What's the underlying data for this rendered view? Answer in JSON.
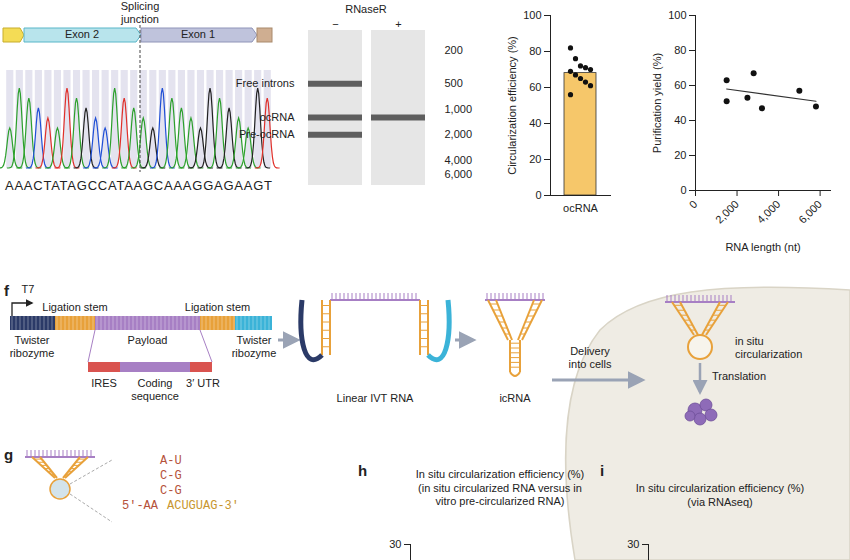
{
  "chart_data": [
    {
      "type": "gel",
      "title": "RNaseR",
      "lanes": [
        "−",
        "+"
      ],
      "log": "y",
      "ylim": [
        8000,
        117
      ],
      "yticks": [
        {
          "value": 6000,
          "label": "6,000"
        },
        {
          "value": 4000,
          "label": "4,000"
        },
        {
          "value": 2000,
          "label": "2,000"
        },
        {
          "value": 1000,
          "label": "1,000"
        },
        500,
        200
      ],
      "bands": [
        {
          "lane": "−",
          "size": 2000,
          "label": "Pre-ocRNA"
        },
        {
          "lane": "−",
          "size": 1250,
          "label": "ocRNA"
        },
        {
          "lane": "−",
          "size": 500,
          "label": "Free introns"
        },
        {
          "lane": "+",
          "size": 1250
        }
      ]
    },
    {
      "type": "bar",
      "categories": [
        "ocRNA"
      ],
      "values": [
        68
      ],
      "points": [
        [
          82,
          76,
          72,
          71,
          70,
          69,
          67,
          65,
          63,
          61,
          56
        ]
      ],
      "color": "#f6c76a",
      "ylabel": "Circularization efficiency (%)",
      "ylim": [
        0,
        100
      ],
      "yticks": [
        0,
        20,
        40,
        60,
        80,
        100
      ]
    },
    {
      "type": "scatter",
      "x": [
        1500,
        1500,
        2500,
        2800,
        3200,
        5000,
        5800
      ],
      "values": [
        63,
        51,
        53,
        67,
        47,
        57,
        48
      ],
      "trend_line": {
        "x": [
          1500,
          5800
        ],
        "values": [
          58,
          51
        ]
      },
      "color": "#111111",
      "xlabel": "RNA length (nt)",
      "ylabel": "Purification yield (%)",
      "xlim": [
        0,
        6500
      ],
      "xticks": [
        0,
        {
          "value": 2000,
          "label": "2,000"
        },
        {
          "value": 4000,
          "label": "4,000"
        },
        {
          "value": 6000,
          "label": "6,000"
        }
      ],
      "ylim": [
        0,
        100
      ],
      "yticks": [
        0,
        20,
        40,
        60,
        80,
        100
      ]
    },
    {
      "type": "bar",
      "panel": "h",
      "title": "In situ circularization efficiency (%)",
      "subtitle": "(in situ circularized RNA versus in vitro pre-circularized RNA)",
      "ylim": [
        0,
        30
      ],
      "yticks": [
        30
      ]
    },
    {
      "type": "bar",
      "panel": "i",
      "title": "In situ circularization efficiency (%)",
      "subtitle": "(via RNAseq)",
      "ylim": [
        0,
        30
      ],
      "yticks": [
        30
      ]
    }
  ],
  "diagrams": {
    "sanger": {
      "junction_label": "Splicing junction",
      "exons": [
        "Exon 2",
        "Exon 1"
      ],
      "sequence": "AAACTATAGCCATAAGCAAAGGAGAAGT"
    },
    "panel_f": {
      "letter": "f",
      "promoter": "T7",
      "construct": [
        "Twister ribozyme",
        "Ligation stem",
        "Payload",
        "Ligation stem",
        "Twister ribozyme"
      ],
      "payload_parts": [
        "IRES",
        "Coding sequence",
        "3′ UTR"
      ],
      "steps": [
        "Linear IVT RNA",
        "icRNA"
      ],
      "delivery": "Delivery into cells",
      "in_cell": [
        "in situ circularization",
        "Translation"
      ]
    },
    "panel_g": {
      "letter": "g",
      "pairs": [
        "A-U",
        "C-G",
        "C-G"
      ],
      "strand_5": "5′-AA",
      "strand_3": "ACUGUAG-3′"
    }
  }
}
